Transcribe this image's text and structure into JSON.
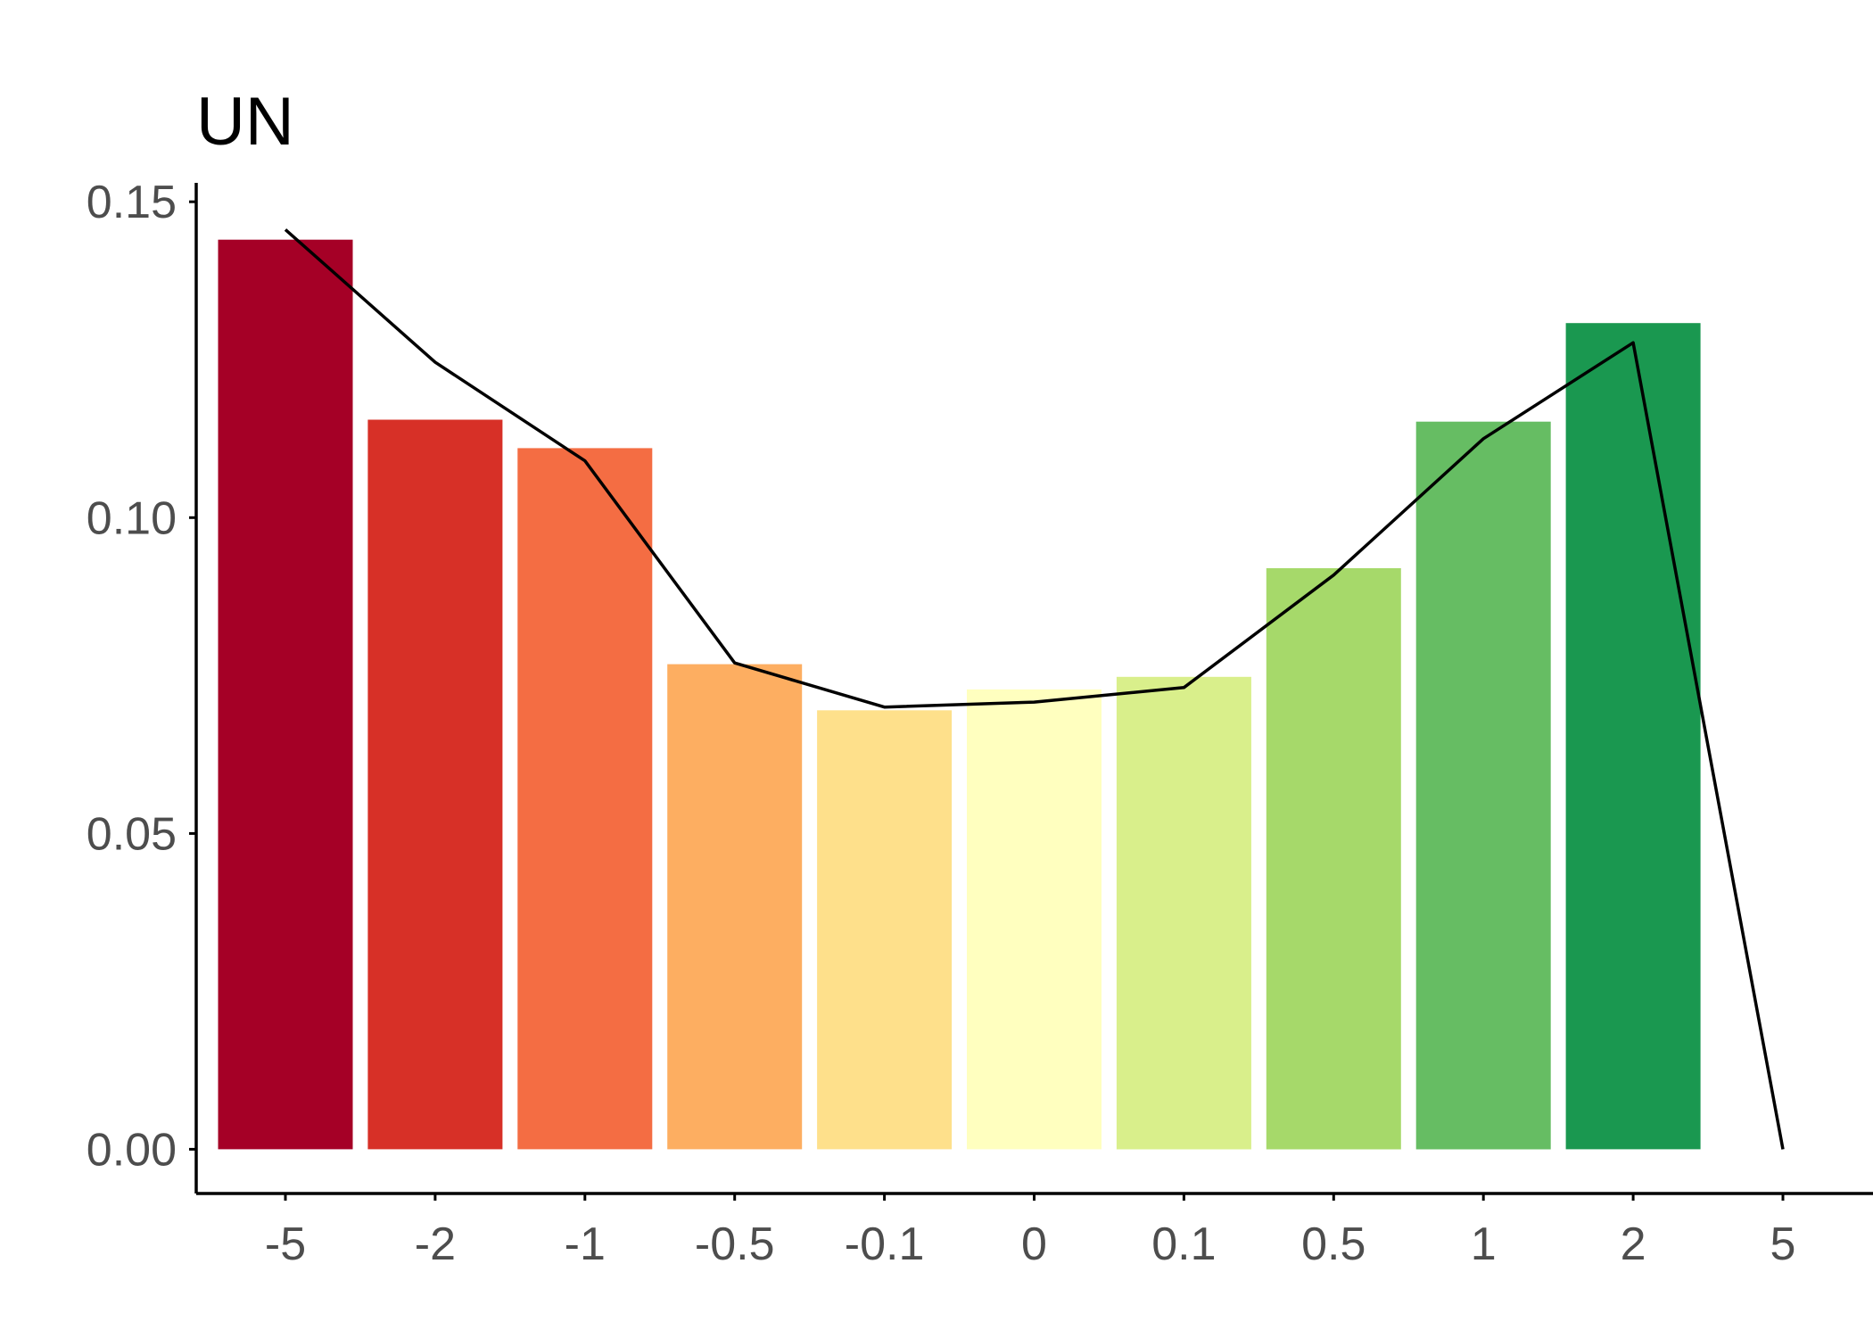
{
  "chart_data": {
    "type": "bar",
    "title": "UN",
    "xlabel": "",
    "ylabel": "",
    "categories": [
      "-5",
      "-2",
      "-1",
      "-0.5",
      "-0.1",
      "0",
      "0.1",
      "0.5",
      "1",
      "2",
      "5"
    ],
    "series": [
      {
        "type": "bar",
        "values": [
          0.144,
          0.1155,
          0.111,
          0.0768,
          0.0695,
          0.0728,
          0.0748,
          0.092,
          0.1152,
          0.1308,
          0
        ],
        "colors": [
          "#a50026",
          "#d73027",
          "#f46d43",
          "#fdae61",
          "#fee08b",
          "#ffffbf",
          "#d9ef8b",
          "#a6d96a",
          "#66bd63",
          "#1a9850",
          "#006837"
        ]
      },
      {
        "type": "line",
        "values": [
          0.1456,
          0.1246,
          0.109,
          0.077,
          0.07,
          0.0708,
          0.0731,
          0.0909,
          0.1125,
          0.1277,
          0
        ]
      }
    ],
    "y_ticks": [
      "0.00",
      "0.05",
      "0.10",
      "0.15"
    ],
    "ylim": [
      -0.007,
      0.153
    ],
    "grid": false,
    "legend": "none"
  }
}
